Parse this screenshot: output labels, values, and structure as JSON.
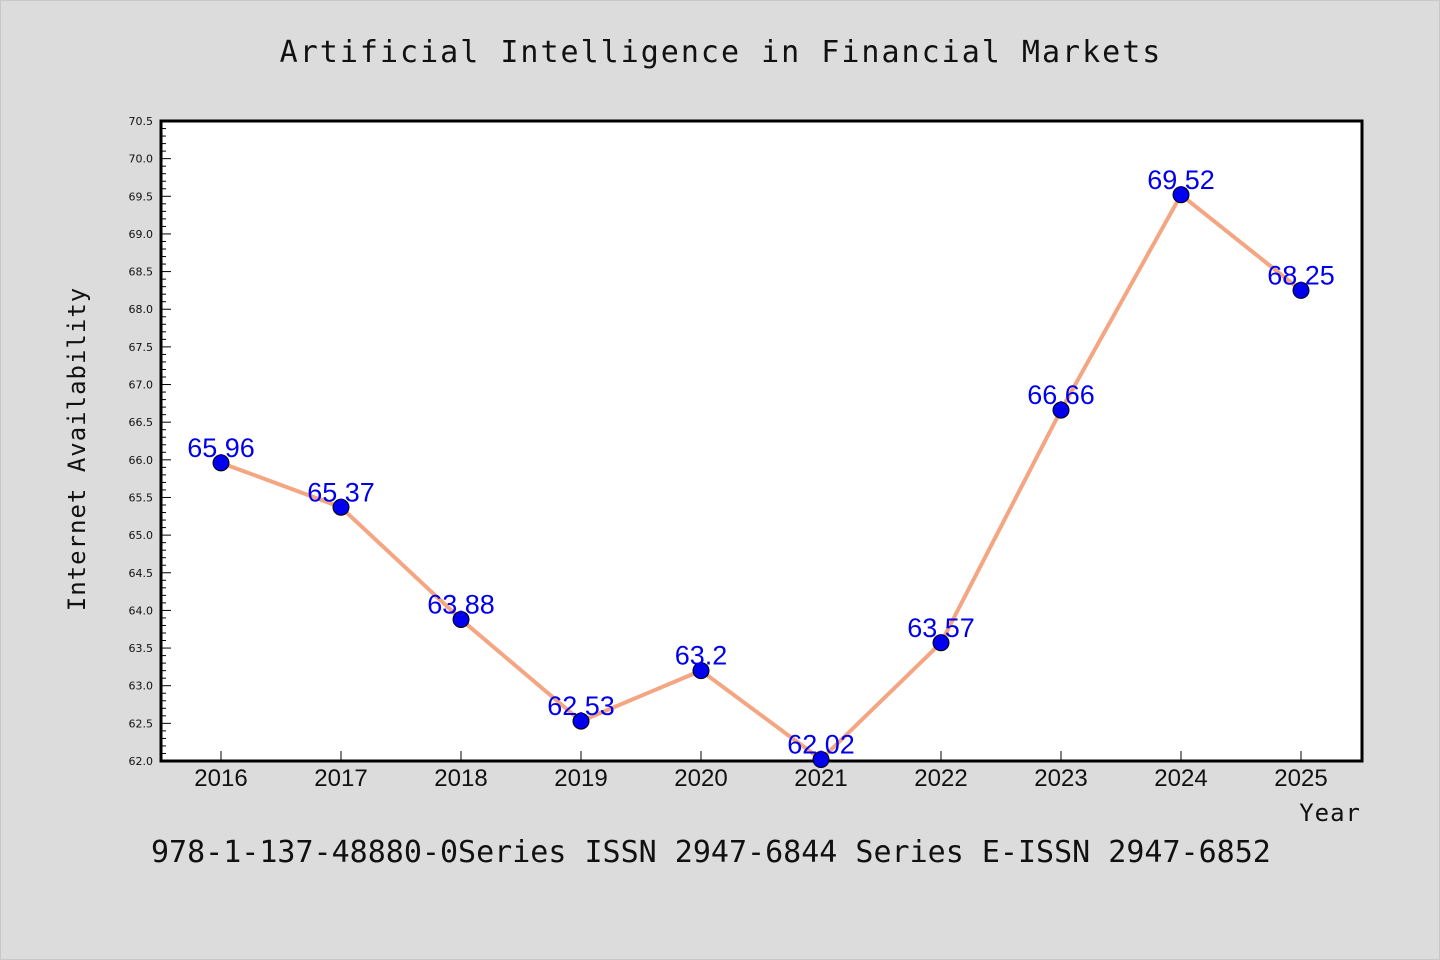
{
  "page": {
    "title": "Artificial Intelligence in Financial Markets",
    "footer": "978-1-137-48880-0Series ISSN 2947-6844 Series E-ISSN 2947-6852"
  },
  "chart_data": {
    "type": "line",
    "title": "Artificial Intelligence in Financial Markets",
    "xlabel": "Year",
    "ylabel": "Internet Availability",
    "categories": [
      "2016",
      "2017",
      "2018",
      "2019",
      "2020",
      "2021",
      "2022",
      "2023",
      "2024",
      "2025"
    ],
    "series": [
      {
        "values": [
          65.96,
          65.37,
          63.88,
          62.53,
          63.2,
          62.02,
          63.57,
          66.66,
          69.52,
          68.25
        ],
        "labels": [
          "65.96",
          "65.37",
          "63.88",
          "62.53",
          "63.2",
          "62.02",
          "63.57",
          "66.66",
          "69.52",
          "68.25"
        ]
      }
    ],
    "ylim": [
      62.0,
      70.5
    ],
    "yticks": [
      "62.0",
      "62.5",
      "63.0",
      "63.5",
      "64.0",
      "64.5",
      "65.0",
      "65.5",
      "66.0",
      "66.5",
      "67.0",
      "67.5",
      "68.0",
      "68.5",
      "69.0",
      "69.5",
      "70.0",
      "70.5"
    ],
    "grid": false,
    "colors": {
      "line": "#f4a582",
      "marker": "#0000ee",
      "label": "#0000ee",
      "plot_bg": "#ffffff",
      "page_bg": "#dcdcdc"
    }
  }
}
